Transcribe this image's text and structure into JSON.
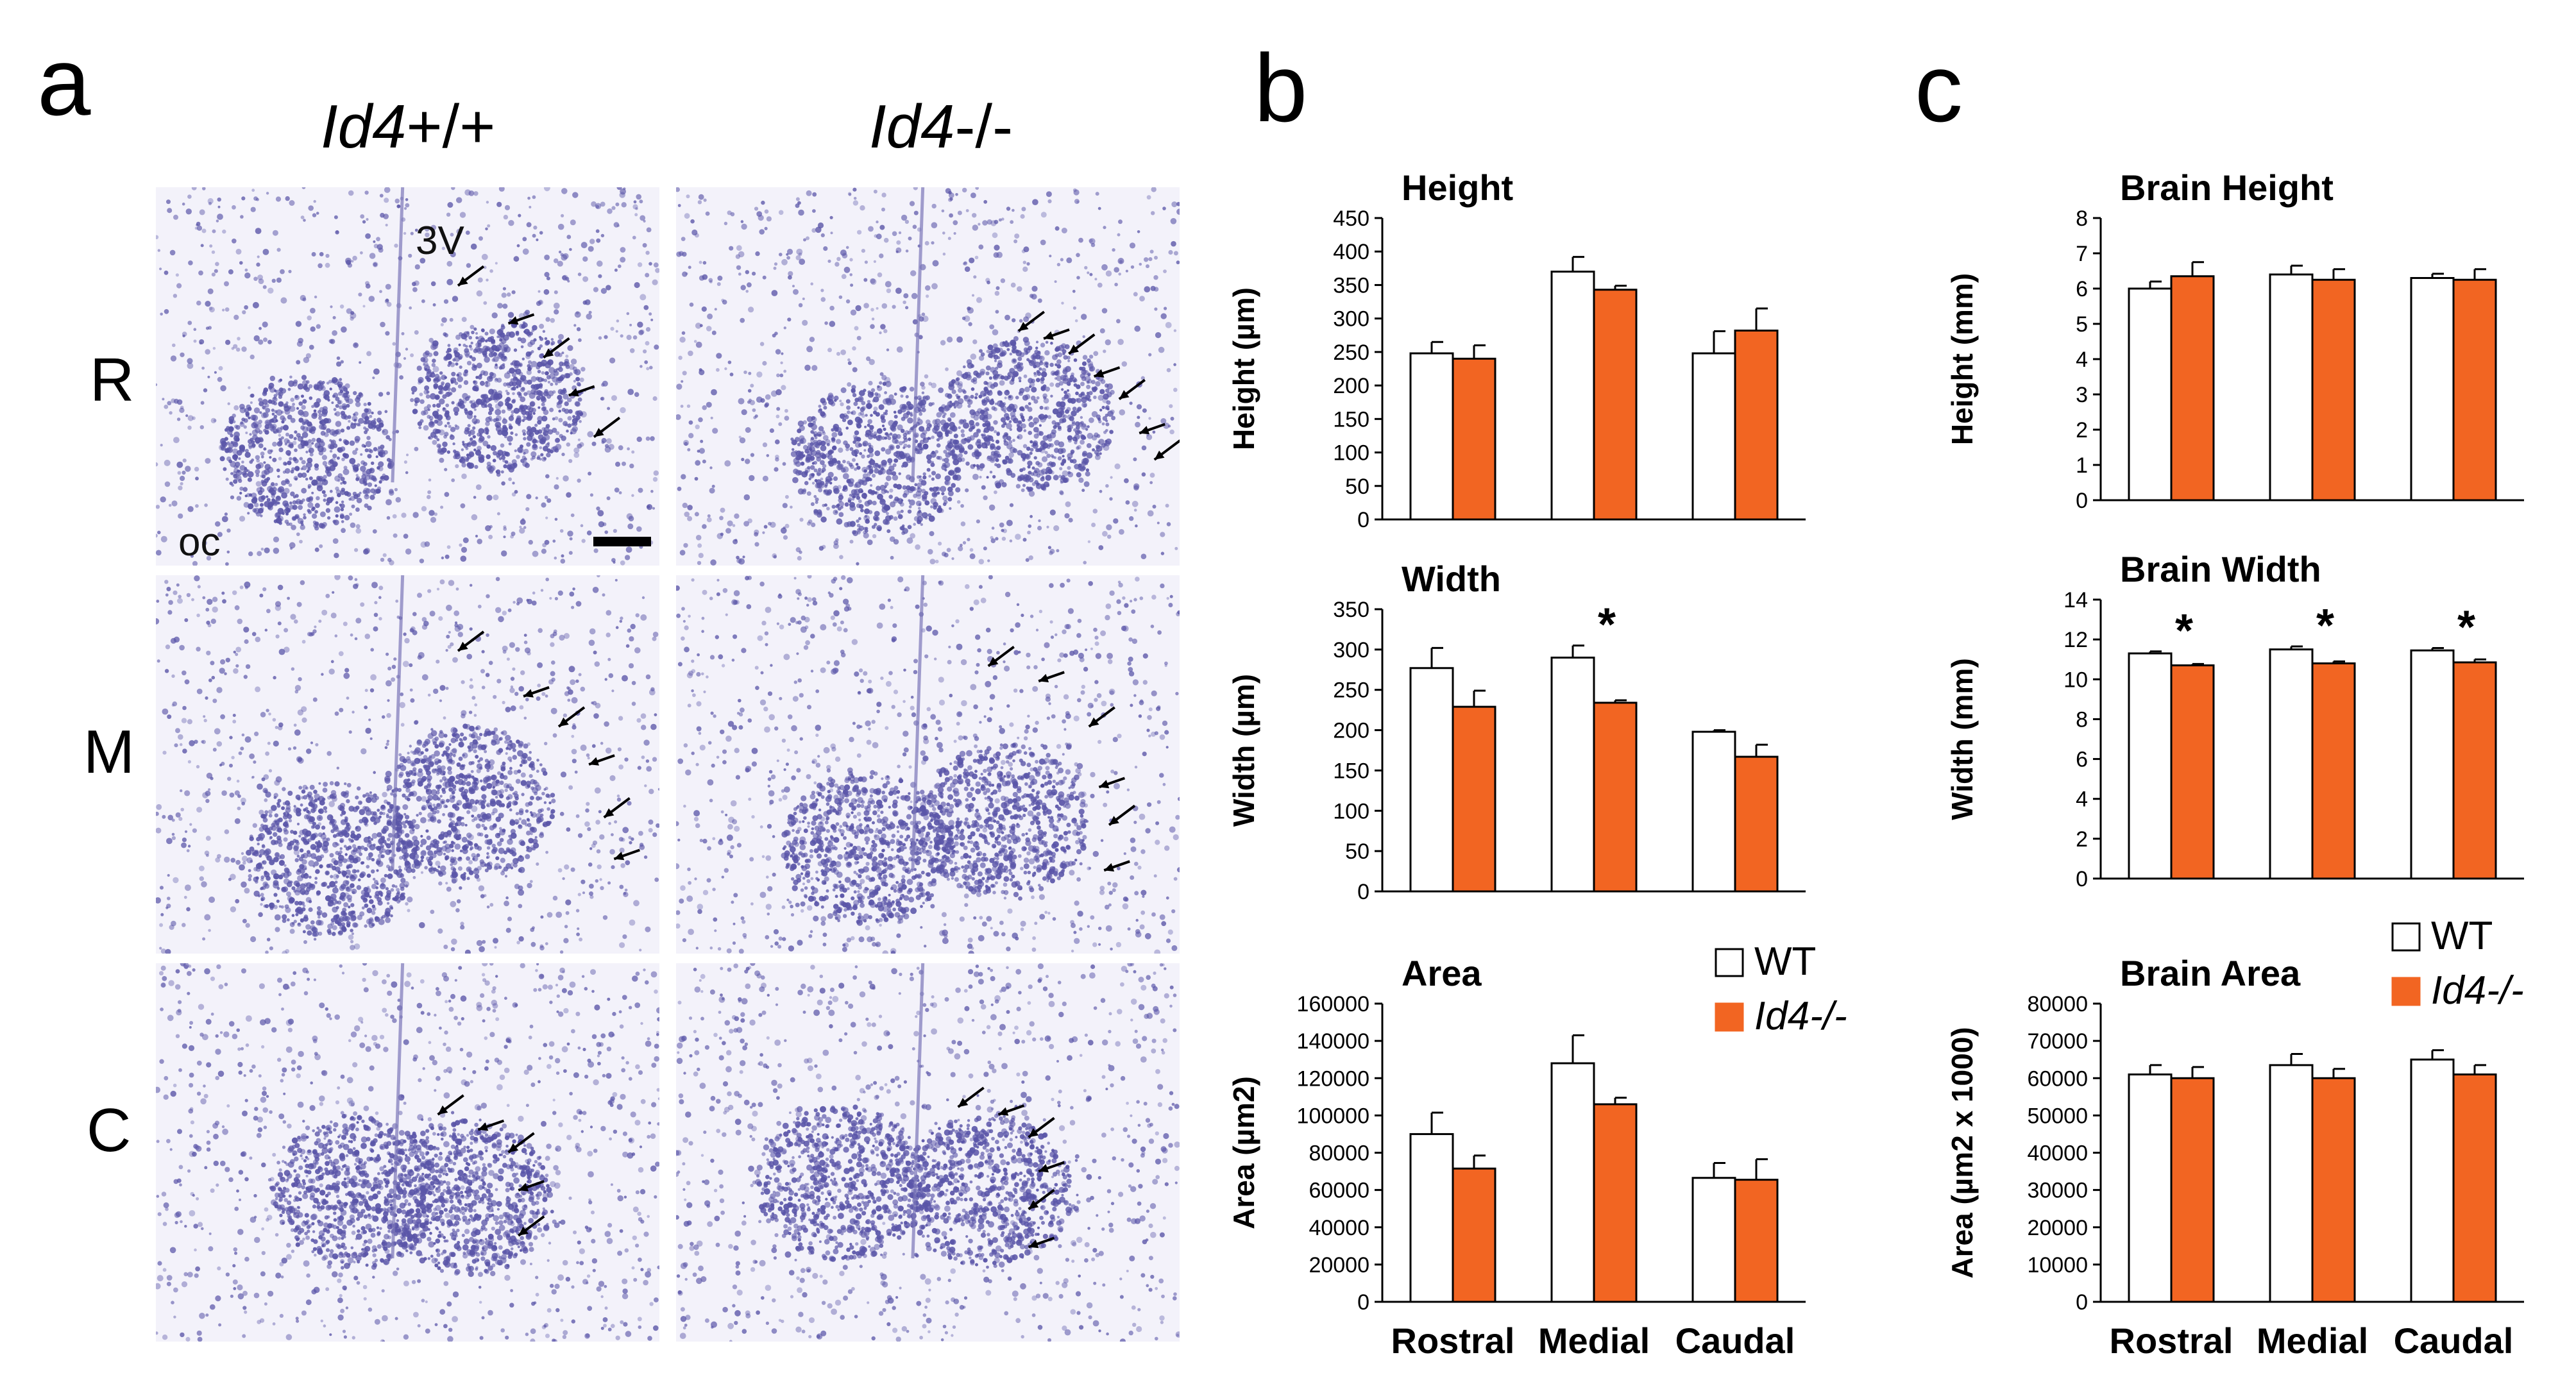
{
  "panels": {
    "a": {
      "letter": "a",
      "columns": [
        "Id4",
        "+/+",
        "Id4",
        "-/-"
      ],
      "rows": [
        "R",
        "M",
        "C"
      ],
      "annotations": {
        "ventricle": "3V",
        "chiasm": "oc"
      }
    },
    "b": {
      "letter": "b"
    },
    "c": {
      "letter": "c"
    }
  },
  "colors": {
    "wt": "#ffffff",
    "ko": "#f26522",
    "edge": "#000000",
    "stain": "#5a55a8"
  },
  "legend": {
    "wt": "WT",
    "ko": "Id4-/-"
  },
  "chart_data": [
    {
      "type": "bar",
      "title": "Height",
      "ylabel": "Height (µm)",
      "categories": [
        "Rostral",
        "Medial",
        "Caudal"
      ],
      "ylim": [
        0,
        450
      ],
      "yticks": [
        0,
        50,
        100,
        150,
        200,
        250,
        300,
        350,
        400,
        450
      ],
      "series": [
        {
          "name": "WT",
          "values": [
            248,
            370,
            248
          ],
          "errors": [
            17,
            22,
            33
          ]
        },
        {
          "name": "Id4-/-",
          "values": [
            240,
            343,
            282
          ],
          "errors": [
            20,
            6,
            33
          ]
        }
      ],
      "significant": []
    },
    {
      "type": "bar",
      "title": "Width",
      "ylabel": "Width (µm)",
      "categories": [
        "Rostral",
        "Medial",
        "Caudal"
      ],
      "ylim": [
        0,
        350
      ],
      "yticks": [
        0,
        50,
        100,
        150,
        200,
        250,
        300,
        350
      ],
      "series": [
        {
          "name": "WT",
          "values": [
            277,
            290,
            198
          ],
          "errors": [
            25,
            15,
            2
          ]
        },
        {
          "name": "Id4-/-",
          "values": [
            229,
            234,
            167
          ],
          "errors": [
            20,
            3,
            15
          ]
        }
      ],
      "significant": [
        1
      ]
    },
    {
      "type": "bar",
      "title": "Area",
      "ylabel": "Area (µm2)",
      "categories": [
        "Rostral",
        "Medial",
        "Caudal"
      ],
      "ylim": [
        0,
        160000
      ],
      "yticks": [
        0,
        20000,
        40000,
        60000,
        80000,
        100000,
        120000,
        140000,
        160000
      ],
      "series": [
        {
          "name": "WT",
          "values": [
            90000,
            128000,
            66500
          ],
          "errors": [
            11500,
            15000,
            8000
          ]
        },
        {
          "name": "Id4-/-",
          "values": [
            71500,
            106000,
            65500
          ],
          "errors": [
            7000,
            3500,
            11000
          ]
        }
      ],
      "significant": []
    },
    {
      "type": "bar",
      "title": "Brain Height",
      "ylabel": "Height (mm)",
      "categories": [
        "Rostral",
        "Medial",
        "Caudal"
      ],
      "ylim": [
        0,
        8
      ],
      "yticks": [
        0,
        1,
        2,
        3,
        4,
        5,
        6,
        7,
        8
      ],
      "series": [
        {
          "name": "WT",
          "values": [
            6.0,
            6.4,
            6.3
          ],
          "errors": [
            0.2,
            0.25,
            0.12
          ]
        },
        {
          "name": "Id4-/-",
          "values": [
            6.35,
            6.25,
            6.25
          ],
          "errors": [
            0.4,
            0.3,
            0.3
          ]
        }
      ],
      "significant": []
    },
    {
      "type": "bar",
      "title": "Brain Width",
      "ylabel": "Width (mm)",
      "categories": [
        "Rostral",
        "Medial",
        "Caudal"
      ],
      "ylim": [
        0,
        14
      ],
      "yticks": [
        0,
        2,
        4,
        6,
        8,
        10,
        12,
        14
      ],
      "series": [
        {
          "name": "WT",
          "values": [
            11.3,
            11.5,
            11.45
          ],
          "errors": [
            0.1,
            0.15,
            0.12
          ]
        },
        {
          "name": "Id4-/-",
          "values": [
            10.7,
            10.8,
            10.85
          ],
          "errors": [
            0.07,
            0.1,
            0.15
          ]
        }
      ],
      "significant": [
        0,
        1,
        2
      ]
    },
    {
      "type": "bar",
      "title": "Brain Area",
      "ylabel": "Area (µm2 x 1000)",
      "categories": [
        "Rostral",
        "Medial",
        "Caudal"
      ],
      "ylim": [
        0,
        80000
      ],
      "yticks": [
        0,
        10000,
        20000,
        30000,
        40000,
        50000,
        60000,
        70000,
        80000
      ],
      "series": [
        {
          "name": "WT",
          "values": [
            61000,
            63500,
            65000
          ],
          "errors": [
            2500,
            3000,
            2500
          ]
        },
        {
          "name": "Id4-/-",
          "values": [
            60000,
            60000,
            61000
          ],
          "errors": [
            3000,
            2500,
            2500
          ]
        }
      ],
      "significant": []
    }
  ]
}
